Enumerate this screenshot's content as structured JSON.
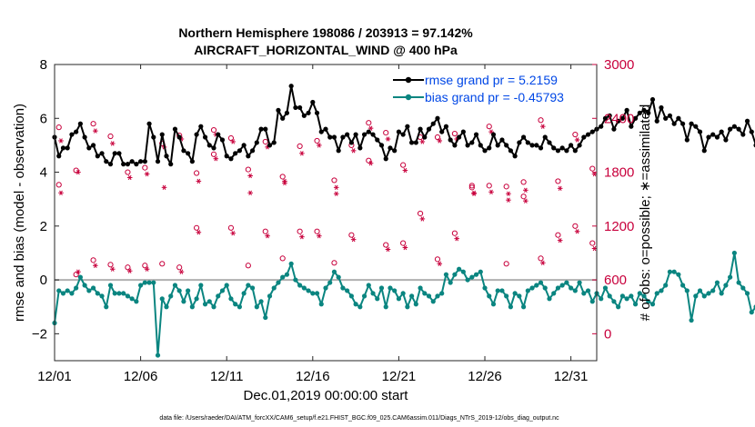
{
  "chart_data": {
    "type": "line",
    "title_line1": "Northern Hemisphere 198086 / 203913 = 97.142%",
    "title_line2": "AIRCRAFT_HORIZONTAL_WIND @ 400 hPa",
    "xlabel": "Dec.01,2019 00:00:00 start",
    "ylabel_left": "rmse and bias (model - observation)",
    "ylabel_right": "# of obs: o=possible; ∗=assimilated",
    "xlim": [
      0,
      31.5
    ],
    "ylim_left": [
      -3,
      8
    ],
    "ylim_right": [
      -300,
      3000
    ],
    "x_ticks": [
      {
        "x": 0,
        "label": "12/01"
      },
      {
        "x": 5,
        "label": "12/06"
      },
      {
        "x": 10,
        "label": "12/11"
      },
      {
        "x": 15,
        "label": "12/16"
      },
      {
        "x": 20,
        "label": "12/21"
      },
      {
        "x": 25,
        "label": "12/26"
      },
      {
        "x": 30,
        "label": "12/31"
      }
    ],
    "y_ticks_left": [
      -2,
      0,
      2,
      4,
      6,
      8
    ],
    "y_ticks_right": [
      0,
      600,
      1200,
      1800,
      2400,
      3000
    ],
    "zero_line": 0,
    "colors": {
      "rmse": "#000000",
      "bias": "#0a8580",
      "obs": "#c8003c",
      "legend_text": "#0047e6",
      "zero": "#b0b0b0"
    },
    "legend": [
      {
        "label": "rmse grand pr = 5.2159",
        "series": "rmse"
      },
      {
        "label": "bias grand pr = -0.45793",
        "series": "bias"
      }
    ],
    "footer": "data file: /Users/raeder/DAI/ATM_forcXX/CAM6_setup/f.e21.FHIST_BGC.f09_025.CAM6assim.011/Diags_NTrS_2019-12/obs_diag_output.nc",
    "series": [
      {
        "name": "rmse",
        "axis": "left",
        "x_start": 0,
        "x_step": 0.25,
        "values": [
          5.3,
          4.6,
          4.9,
          4.9,
          5.4,
          5.5,
          5.8,
          5.3,
          4.9,
          5.0,
          4.6,
          4.7,
          4.4,
          4.3,
          4.7,
          4.7,
          4.3,
          4.3,
          4.4,
          4.3,
          4.4,
          4.4,
          5.8,
          5.3,
          4.4,
          5.4,
          4.6,
          4.3,
          5.6,
          5.3,
          4.8,
          4.7,
          4.4,
          5.4,
          5.7,
          5.3,
          5.0,
          4.9,
          5.4,
          5.2,
          4.6,
          4.5,
          4.7,
          4.8,
          5.0,
          4.6,
          4.8,
          5.1,
          5.6,
          5.6,
          5.0,
          5.1,
          6.3,
          6.0,
          6.2,
          7.2,
          6.4,
          6.4,
          6.1,
          6.2,
          6.6,
          6.2,
          5.5,
          5.6,
          5.3,
          5.3,
          4.8,
          5.3,
          5.4,
          5.1,
          5.4,
          4.9,
          5.4,
          5.5,
          5.4,
          5.2,
          5.0,
          4.5,
          4.9,
          4.8,
          5.5,
          5.4,
          5.7,
          5.1,
          5.1,
          5.6,
          5.3,
          5.6,
          5.8,
          6.0,
          5.5,
          5.7,
          5.2,
          5.0,
          5.3,
          5.5,
          5.0,
          5.1,
          5.4,
          5.0,
          4.8,
          4.9,
          5.4,
          5.0,
          5.2,
          5.0,
          4.8,
          4.6,
          5.1,
          5.3,
          5.1,
          5.0,
          5.0,
          4.9,
          5.3,
          5.1,
          4.9,
          4.8,
          4.9,
          4.8,
          5.0,
          4.8,
          5.0,
          5.3,
          5.4,
          5.5,
          5.6,
          5.7,
          6.0,
          6.1,
          5.6,
          5.9,
          6.0,
          6.3,
          5.7,
          6.0,
          6.2,
          6.3,
          6.2,
          6.7,
          5.9,
          6.4,
          6.0,
          6.1,
          5.8,
          6.0,
          5.8,
          5.2,
          5.8,
          5.7,
          5.5,
          4.8,
          5.3,
          5.4,
          5.3,
          5.5,
          5.2,
          5.6,
          5.7,
          5.6,
          5.4,
          5.9,
          5.5,
          5.0,
          4.8,
          5.3,
          5.5,
          5.9,
          5.6,
          5.0,
          5.5,
          5.2,
          5.8,
          5.6,
          5.8,
          5.4,
          5.3,
          5.0,
          4.8,
          4.9,
          5.1,
          4.6,
          5.0,
          4.8,
          4.5,
          4.7,
          4.9,
          4.5,
          4.3,
          4.6,
          4.4,
          4.7,
          4.5,
          4.4,
          3.8,
          4.6,
          4.8,
          4.6,
          4.5,
          4.9,
          5.0,
          5.1,
          4.6,
          4.9,
          4.8,
          4.6,
          4.5
        ]
      },
      {
        "name": "bias",
        "axis": "left",
        "x_start": 0,
        "x_step": 0.25,
        "values": [
          -1.6,
          -0.4,
          -0.5,
          -0.4,
          -0.5,
          -0.3,
          0.1,
          -0.2,
          -0.4,
          -0.3,
          -0.5,
          -0.6,
          -1.0,
          -0.2,
          -0.5,
          -0.5,
          -0.5,
          -0.6,
          -0.7,
          -0.8,
          -0.2,
          -0.1,
          -0.1,
          -0.1,
          -2.8,
          -0.7,
          -1.0,
          -0.6,
          -0.2,
          -0.4,
          -0.8,
          -0.4,
          -1.0,
          -0.7,
          -0.2,
          -0.9,
          -0.8,
          -1.0,
          -0.6,
          -0.4,
          -0.2,
          -0.7,
          -0.9,
          -1.0,
          -0.5,
          -0.2,
          -0.3,
          -1.0,
          -0.8,
          -1.4,
          -0.6,
          -0.3,
          -0.1,
          0.1,
          0.2,
          0.6,
          0.0,
          -0.2,
          -0.3,
          -0.4,
          -0.5,
          -0.5,
          -0.9,
          -0.3,
          -0.1,
          0.3,
          0.1,
          -0.3,
          -0.4,
          -0.6,
          -0.9,
          -1.0,
          -0.6,
          -0.2,
          -0.5,
          -0.7,
          -0.3,
          -1.0,
          -0.3,
          -0.4,
          -0.7,
          -0.5,
          -1.0,
          -0.6,
          -0.9,
          -0.3,
          -0.5,
          -0.6,
          -0.8,
          -0.6,
          -0.5,
          0.2,
          -0.1,
          0.2,
          0.4,
          0.3,
          0.0,
          0.1,
          0.2,
          0.3,
          -0.3,
          -0.6,
          -0.9,
          -0.4,
          -0.4,
          -0.6,
          -1.0,
          -0.5,
          -0.6,
          -1.0,
          -0.4,
          -0.3,
          -0.2,
          -0.1,
          -0.3,
          -0.7,
          -0.5,
          -0.3,
          -0.2,
          -0.1,
          -0.3,
          -0.4,
          -0.1,
          -0.5,
          -0.4,
          -0.8,
          -0.5,
          -0.7,
          -0.3,
          -0.6,
          -0.8,
          -1.0,
          -0.6,
          -0.7,
          -0.6,
          -0.9,
          -0.5,
          -0.6,
          -0.8,
          -0.9,
          -0.5,
          -0.4,
          -0.2,
          0.3,
          0.3,
          0.2,
          -0.2,
          -0.4,
          -1.5,
          -0.6,
          -0.4,
          -0.6,
          -0.5,
          -0.4,
          -0.1,
          -0.5,
          -0.2,
          0.1,
          1.0,
          -0.1,
          -0.3,
          -0.5,
          -1.2,
          -1.0,
          -0.7,
          -0.5,
          -0.7,
          -0.6,
          -0.9,
          -0.7,
          -0.9,
          -0.7,
          -0.7,
          -0.9,
          -1.2,
          -0.6,
          -0.9,
          -0.5,
          -0.9,
          -1.1,
          -0.5,
          -0.6,
          -0.8,
          -0.6,
          -0.8,
          -0.4,
          -0.2,
          -0.4,
          -0.1,
          -0.2,
          -0.3,
          -0.1,
          -0.1,
          -0.2,
          -0.5,
          -0.4,
          -0.3,
          -0.5,
          -0.7,
          -0.6
        ]
      },
      {
        "name": "possible",
        "axis": "right",
        "marker": "circle",
        "x_start": 0.25,
        "x_step": 1,
        "values": [
          2300,
          1820,
          2340,
          2200,
          1800,
          1850,
          2120,
          2210,
          1790,
          2270,
          2180,
          1830,
          2140,
          1750,
          2090,
          2150,
          1710,
          2100,
          2350,
          2240,
          1880,
          2190,
          2190,
          2230,
          1650,
          2310,
          1640,
          1690,
          2380,
          1700,
          2220,
          1840
        ],
        "values_low": [
          1660,
          660,
          820,
          770,
          740,
          760,
          780,
          740,
          1180,
          2000,
          1180,
          760,
          1140,
          840,
          1140,
          1140,
          790,
          1100,
          1930,
          990,
          1010,
          1340,
          830,
          1120,
          1630,
          1650,
          780,
          1530,
          840,
          1100,
          1200,
          1010
        ]
      },
      {
        "name": "assimilated",
        "axis": "right",
        "marker": "star",
        "x_start": 0.25,
        "x_step": 1,
        "values": [
          2150,
          1800,
          2260,
          2120,
          1740,
          1780,
          2080,
          2170,
          1700,
          2220,
          2140,
          1760,
          2080,
          1680,
          2010,
          2100,
          1630,
          2040,
          2290,
          2170,
          1820,
          2140,
          2150,
          2170,
          1560,
          2250,
          1560,
          1600,
          2310,
          1620,
          2160,
          1780
        ],
        "values_low": [
          1570,
          690,
          760,
          720,
          700,
          720,
          1630,
          690,
          1130,
          1950,
          1120,
          1570,
          1090,
          1700,
          1080,
          1090,
          1560,
          1050,
          1900,
          940,
          960,
          1280,
          780,
          1060,
          1570,
          1580,
          1490,
          1480,
          790,
          1040,
          1140,
          950
        ]
      }
    ]
  }
}
